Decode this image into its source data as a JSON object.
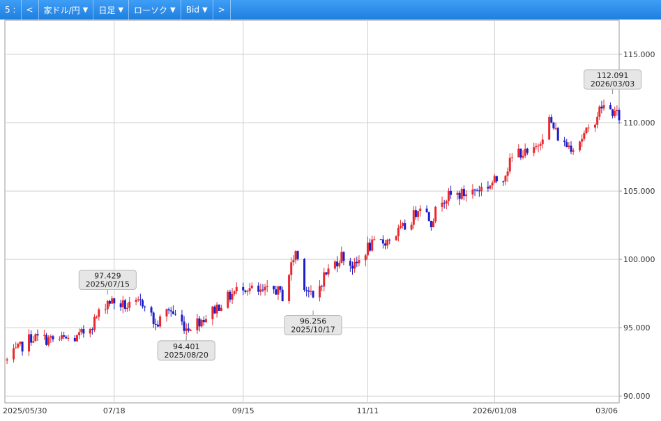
{
  "toolbar": {
    "slot": "5 :",
    "prev": "<",
    "pair": "家ドル/円",
    "period": "日足",
    "chart_type": "ローソク",
    "price_side": "Bid",
    "next": ">",
    "dropdown_icon": "▼"
  },
  "colors": {
    "toolbar_bg": "#2a8ae8",
    "up": "#e8282d",
    "down": "#1e1ec8",
    "grid": "#cfcfcf",
    "callout_bg": "#e6e6e6"
  },
  "chart_data": {
    "type": "candlestick",
    "title": "",
    "xlabel": "",
    "ylabel": "",
    "ylim": [
      89.5,
      117.5
    ],
    "xlim": [
      "2025-05-29",
      "2026-03-06"
    ],
    "y_ticks": [
      "90.000",
      "95.000",
      "100.000",
      "105.000",
      "110.000",
      "115.000"
    ],
    "x_ticks": [
      {
        "label": "2025/05/30",
        "date": "2025-05-30"
      },
      {
        "label": "07/18",
        "date": "2025-07-18"
      },
      {
        "label": "09/15",
        "date": "2025-09-15"
      },
      {
        "label": "11/11",
        "date": "2025-11-11"
      },
      {
        "label": "2026/01/08",
        "date": "2026-01-08"
      },
      {
        "label": "03/06",
        "date": "2026-03-06"
      }
    ],
    "annotations": [
      {
        "price": "97.429",
        "date": "2025/07/15",
        "anchor": "high"
      },
      {
        "price": "94.401",
        "date": "2025/08/20",
        "anchor": "low"
      },
      {
        "price": "96.256",
        "date": "2025/10/17",
        "anchor": "low"
      },
      {
        "price": "112.091",
        "date": "2026/03/03",
        "anchor": "high"
      }
    ],
    "grid": true,
    "close_path": [
      [
        "2025-05-30",
        92.6
      ],
      [
        "2025-06-10",
        94.3
      ],
      [
        "2025-06-20",
        94.1
      ],
      [
        "2025-07-01",
        94.2
      ],
      [
        "2025-07-08",
        95.3
      ],
      [
        "2025-07-15",
        97.0
      ],
      [
        "2025-07-25",
        96.5
      ],
      [
        "2025-08-01",
        96.9
      ],
      [
        "2025-08-06",
        95.1
      ],
      [
        "2025-08-12",
        96.4
      ],
      [
        "2025-08-20",
        95.0
      ],
      [
        "2025-08-29",
        95.8
      ],
      [
        "2025-09-05",
        96.8
      ],
      [
        "2025-09-15",
        98.1
      ],
      [
        "2025-09-22",
        97.5
      ],
      [
        "2025-09-30",
        97.8
      ],
      [
        "2025-10-03",
        97.3
      ],
      [
        "2025-10-06",
        99.0
      ],
      [
        "2025-10-09",
        100.6
      ],
      [
        "2025-10-13",
        98.2
      ],
      [
        "2025-10-17",
        97.0
      ],
      [
        "2025-10-22",
        98.8
      ],
      [
        "2025-10-30",
        100.3
      ],
      [
        "2025-11-05",
        99.4
      ],
      [
        "2025-11-11",
        100.9
      ],
      [
        "2025-11-20",
        101.4
      ],
      [
        "2025-11-30",
        102.6
      ],
      [
        "2025-12-05",
        104.1
      ],
      [
        "2025-12-10",
        102.8
      ],
      [
        "2025-12-15",
        104.5
      ],
      [
        "2025-12-25",
        104.8
      ],
      [
        "2026-01-05",
        105.4
      ],
      [
        "2026-01-12",
        106.1
      ],
      [
        "2026-01-18",
        108.0
      ],
      [
        "2026-01-25",
        107.5
      ],
      [
        "2026-02-02",
        110.2
      ],
      [
        "2026-02-08",
        108.4
      ],
      [
        "2026-02-13",
        108.3
      ],
      [
        "2026-02-20",
        109.4
      ],
      [
        "2026-02-26",
        111.2
      ],
      [
        "2026-03-03",
        110.8
      ],
      [
        "2026-03-06",
        110.4
      ]
    ]
  }
}
